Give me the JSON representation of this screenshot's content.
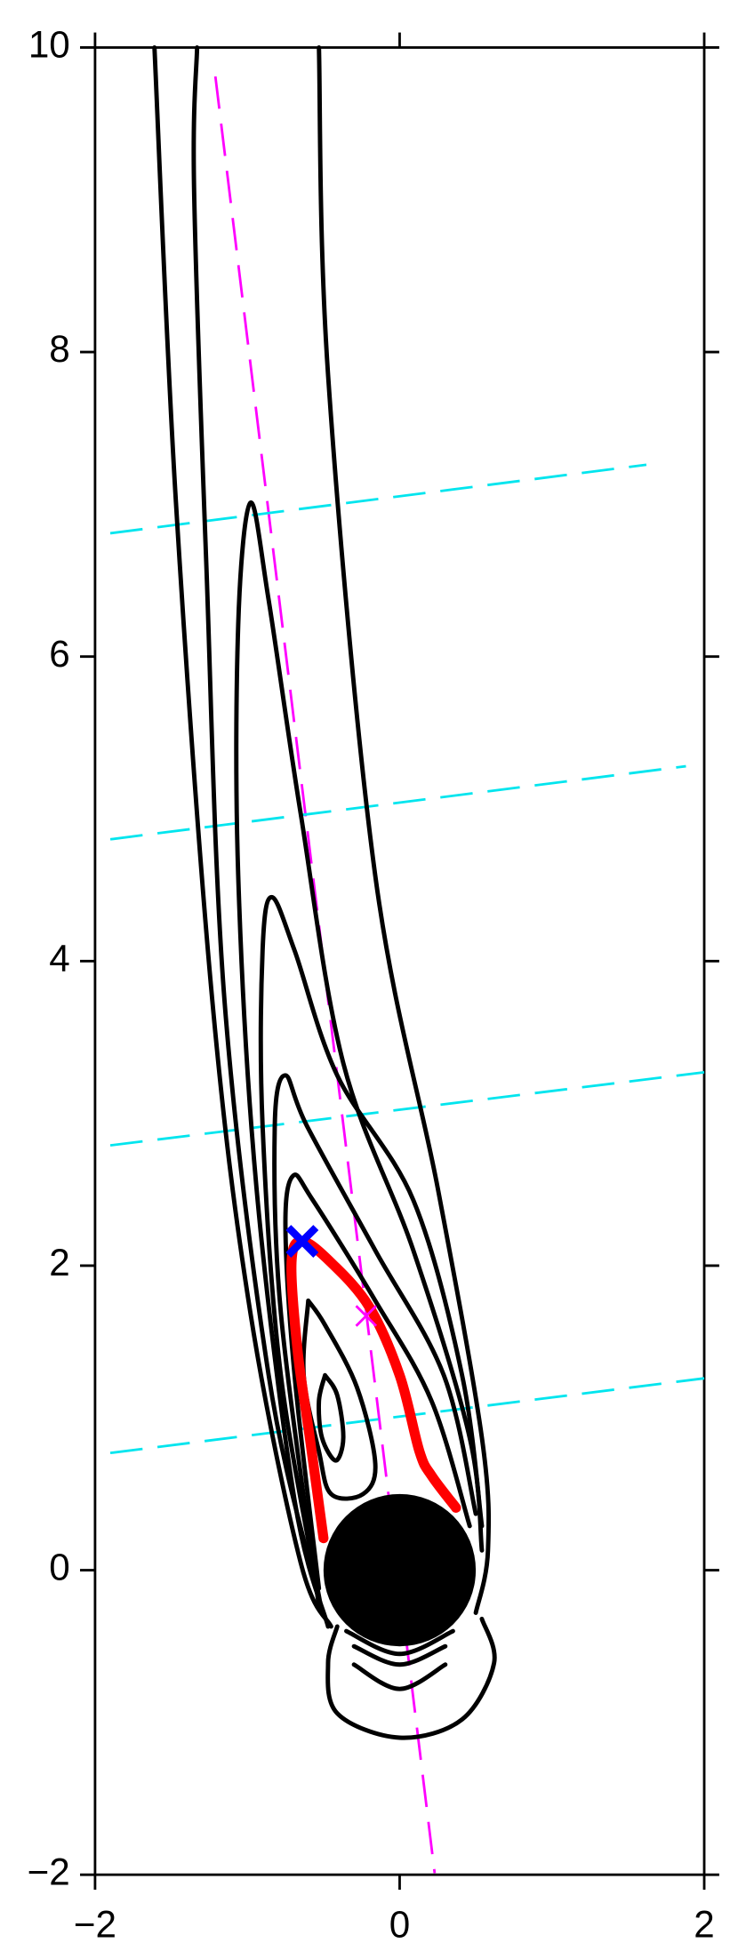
{
  "chart_data": {
    "type": "contour",
    "xlim": [
      -2,
      2
    ],
    "ylim": [
      -2,
      10
    ],
    "xticks": [
      {
        "value": -2,
        "label": "−2"
      },
      0,
      2
    ],
    "yticks": [
      {
        "value": -2,
        "label": "−2"
      },
      0,
      2,
      4,
      6,
      8,
      10
    ],
    "contour_color": "#000000",
    "contours": [
      {
        "x": [
          -1.61,
          -1.47,
          -1.23,
          -0.98,
          -0.65,
          -0.45
        ],
        "y": [
          10,
          7.03,
          3.74,
          1.69,
          0.05,
          -0.37
        ]
      },
      {
        "x": [
          -1.33,
          -1.35,
          -1.27,
          -1.15,
          -0.86,
          -0.57
        ],
        "y": [
          10,
          9.08,
          6.62,
          3.74,
          1.28,
          -0.04
        ]
      },
      {
        "x": [
          -0.53,
          -0.47,
          -0.16,
          0.25,
          0.54,
          0.58,
          0.5
        ],
        "y": [
          10,
          7.85,
          4.56,
          2.51,
          0.87,
          0.13,
          -0.28
        ]
      },
      {
        "x": [
          -0.47,
          -0.69,
          -0.94,
          -1.06,
          -1.06,
          -0.98,
          -0.86,
          -0.65,
          -0.37,
          0.09,
          0.46,
          0.54
        ],
        "y": [
          -0.37,
          0.46,
          2.51,
          4.56,
          6.21,
          7.01,
          6.37,
          4.97,
          3.33,
          2.1,
          0.87,
          0.13
        ]
      },
      {
        "x": [
          -0.51,
          -0.78,
          -0.9,
          -0.9,
          -0.84,
          -0.69,
          -0.41,
          0.09,
          0.41,
          0.54
        ],
        "y": [
          -0.28,
          1.28,
          2.92,
          4.07,
          4.42,
          4.07,
          3.25,
          2.43,
          1.28,
          0.29
        ]
      },
      {
        "x": [
          -0.53,
          -0.78,
          -0.82,
          -0.75,
          -0.61,
          -0.16,
          0.29,
          0.5
        ],
        "y": [
          -0.24,
          1.69,
          2.92,
          3.25,
          2.92,
          2.1,
          1.28,
          0.37
        ]
      },
      {
        "x": [
          -0.53,
          -0.69,
          -0.75,
          -0.7,
          -0.57,
          -0.16,
          0.21,
          0.46
        ],
        "y": [
          -0.12,
          1.28,
          2.26,
          2.59,
          2.43,
          1.77,
          1.11,
          0.29
        ]
      },
      {
        "x": [
          -0.6,
          -0.49,
          -0.28,
          -0.16,
          -0.24,
          -0.45,
          -0.53,
          -0.63,
          -0.6
        ],
        "y": [
          1.77,
          1.61,
          1.2,
          0.7,
          0.5,
          0.5,
          0.78,
          1.28,
          1.77
        ]
      },
      {
        "x": [
          -0.49,
          -0.41,
          -0.37,
          -0.42,
          -0.51,
          -0.53,
          -0.49
        ],
        "y": [
          1.28,
          1.15,
          0.87,
          0.72,
          0.87,
          1.11,
          1.28
        ]
      },
      {
        "x": [
          -0.41,
          -0.47,
          -0.41,
          0,
          0.41,
          0.62,
          0.54
        ],
        "y": [
          -0.37,
          -0.61,
          -0.94,
          -1.1,
          -0.98,
          -0.61,
          -0.32
        ]
      },
      {
        "x": [
          -0.35,
          0,
          0.35
        ],
        "y": [
          -0.4,
          -0.55,
          -0.4
        ]
      },
      {
        "x": [
          -0.3,
          0,
          0.3
        ],
        "y": [
          -0.5,
          -0.62,
          -0.5
        ]
      },
      {
        "x": [
          -0.3,
          0,
          0.3
        ],
        "y": [
          -0.62,
          -0.78,
          -0.62
        ]
      }
    ],
    "circles": [
      {
        "x": 0,
        "y": 0,
        "r": 0.5,
        "color": "#000000"
      }
    ],
    "curves": [
      {
        "x": [
          -0.5,
          -0.59,
          -0.67,
          -0.71,
          -0.64,
          -0.45,
          -0.2,
          0,
          0.13,
          0.21,
          0.37
        ],
        "y": [
          0.21,
          0.87,
          1.44,
          2.02,
          2.16,
          2.02,
          1.73,
          1.28,
          0.78,
          0.62,
          0.41
        ],
        "color": "#ff0000"
      }
    ],
    "dashed_lines": [
      {
        "x": [
          -1.21,
          0.23
        ],
        "y": [
          9.81,
          -1.99
        ],
        "color": "#ff00ff"
      },
      {
        "x": [
          -1.9,
          2
        ],
        "y": [
          0.77,
          1.26
        ],
        "color": "#00e5ee"
      },
      {
        "x": [
          -1.9,
          2
        ],
        "y": [
          2.79,
          3.27
        ],
        "color": "#00e5ee"
      },
      {
        "x": [
          -1.9,
          1.88
        ],
        "y": [
          4.8,
          5.28
        ],
        "color": "#00e5ee"
      },
      {
        "x": [
          -1.9,
          1.62
        ],
        "y": [
          6.81,
          7.26
        ],
        "color": "#00e5ee"
      }
    ],
    "markers": [
      {
        "x": -0.64,
        "y": 2.16,
        "color": "#0000ff"
      },
      {
        "x": -0.22,
        "y": 1.67,
        "color": "#ff00ff"
      }
    ]
  }
}
